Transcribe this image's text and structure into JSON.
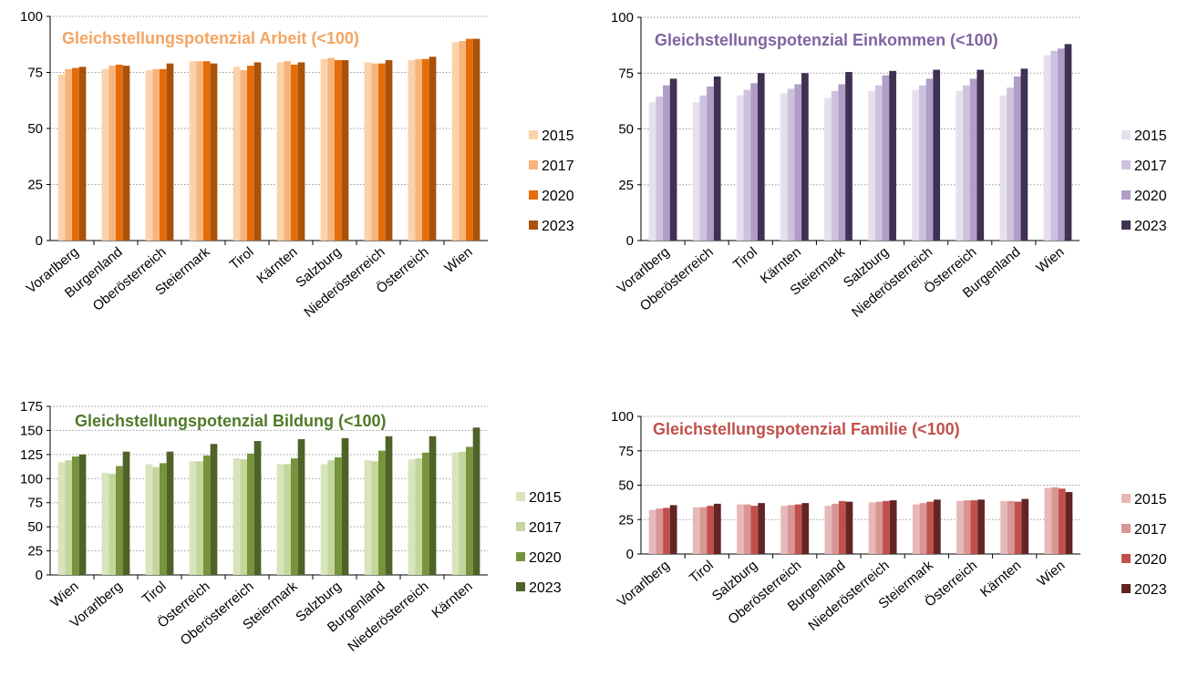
{
  "chart_data": [
    {
      "type": "bar",
      "title": "Gleichstellungspotenzial Arbeit (<100)",
      "title_color": "#f4a460",
      "categories": [
        "Vorarlberg",
        "Burgenland",
        "Oberösterreich",
        "Steiermark",
        "Tirol",
        "Kärnten",
        "Salzburg",
        "Niederösterreich",
        "Österreich",
        "Wien"
      ],
      "ylim": [
        0,
        100
      ],
      "yticks": [
        0,
        25,
        50,
        75,
        100
      ],
      "grid": true,
      "legend_position": "right",
      "series": [
        {
          "name": "2015",
          "color": "#fbd2ab",
          "values": [
            74,
            76.5,
            76,
            80,
            77.5,
            79.5,
            81,
            79.5,
            80.5,
            88.5
          ]
        },
        {
          "name": "2017",
          "color": "#f8b47a",
          "values": [
            76.5,
            78,
            76.5,
            80,
            76,
            80,
            81.5,
            79,
            81,
            89
          ]
        },
        {
          "name": "2020",
          "color": "#e46c0a",
          "values": [
            77,
            78.5,
            76.5,
            80,
            78,
            78.5,
            80.5,
            79,
            81,
            90
          ]
        },
        {
          "name": "2023",
          "color": "#a9520a",
          "values": [
            77.5,
            78,
            79,
            79,
            79.5,
            79.5,
            80.5,
            80.5,
            82,
            90
          ]
        }
      ]
    },
    {
      "type": "bar",
      "title": "Gleichstellungspotenzial Einkommen (<100)",
      "title_color": "#8064a2",
      "categories": [
        "Vorarlberg",
        "Oberösterreich",
        "Tirol",
        "Kärnten",
        "Steiermark",
        "Salzburg",
        "Niederösterreich",
        "Österreich",
        "Burgenland",
        "Wien"
      ],
      "ylim": [
        0,
        100
      ],
      "yticks": [
        0,
        25,
        50,
        75,
        100
      ],
      "grid": true,
      "legend_position": "right",
      "series": [
        {
          "name": "2015",
          "color": "#e6e0ee",
          "values": [
            62,
            62,
            65,
            66,
            64,
            67,
            67.5,
            67,
            65,
            83
          ]
        },
        {
          "name": "2017",
          "color": "#cdc2dd",
          "values": [
            64.5,
            65,
            67.5,
            68,
            67,
            69.5,
            69.5,
            69.5,
            68.5,
            85
          ]
        },
        {
          "name": "2020",
          "color": "#b09dc8",
          "values": [
            69.5,
            69,
            70.5,
            70,
            70,
            74,
            72.5,
            72.5,
            73.5,
            86
          ]
        },
        {
          "name": "2023",
          "color": "#3f3151",
          "values": [
            72.5,
            73.5,
            75,
            75,
            75.5,
            76,
            76.5,
            76.5,
            77,
            88
          ]
        }
      ]
    },
    {
      "type": "bar",
      "title": "Gleichstellungspotenzial Bildung (<100)",
      "title_color": "#4f7a28",
      "categories": [
        "Wien",
        "Vorarlberg",
        "Tirol",
        "Österreich",
        "Oberösterreich",
        "Steiermark",
        "Salzburg",
        "Burgenland",
        "Niederösterreich",
        "Kärnten"
      ],
      "ylim": [
        0,
        175
      ],
      "yticks": [
        0,
        25,
        50,
        75,
        100,
        125,
        150,
        175
      ],
      "grid": true,
      "legend_position": "right",
      "series": [
        {
          "name": "2015",
          "color": "#d8e4bc",
          "values": [
            117,
            106,
            115,
            118,
            121,
            115,
            115,
            119,
            120,
            127
          ]
        },
        {
          "name": "2017",
          "color": "#c3d69b",
          "values": [
            119,
            105,
            112,
            118,
            120,
            115,
            119,
            118,
            121,
            128
          ]
        },
        {
          "name": "2020",
          "color": "#77933c",
          "values": [
            123,
            113,
            116,
            124,
            126,
            121,
            122,
            129,
            127,
            133
          ]
        },
        {
          "name": "2023",
          "color": "#4f6228",
          "values": [
            125,
            128,
            128,
            136,
            139,
            141,
            142,
            144,
            144,
            153
          ]
        }
      ]
    },
    {
      "type": "bar",
      "title": "Gleichstellungspotenzial Familie (<100)",
      "title_color": "#c0504d",
      "categories": [
        "Vorarlberg",
        "Tirol",
        "Salzburg",
        "Oberösterreich",
        "Burgenland",
        "Niederösterreich",
        "Steiermark",
        "Österreich",
        "Kärnten",
        "Wien"
      ],
      "ylim": [
        0,
        100
      ],
      "yticks": [
        0,
        25,
        50,
        75,
        100
      ],
      "grid": true,
      "legend_position": "right",
      "series": [
        {
          "name": "2015",
          "color": "#e6b9b8",
          "values": [
            32,
            34,
            36,
            35,
            35,
            37.5,
            36,
            38.5,
            38.5,
            48
          ]
        },
        {
          "name": "2017",
          "color": "#d99694",
          "values": [
            33,
            34,
            36,
            35.5,
            36.5,
            38,
            37,
            39,
            38.5,
            48.5
          ]
        },
        {
          "name": "2020",
          "color": "#c0504d",
          "values": [
            33.5,
            35,
            35,
            36,
            38.5,
            38.5,
            38,
            39,
            38,
            47.5
          ]
        },
        {
          "name": "2023",
          "color": "#632523",
          "values": [
            35.5,
            36.5,
            37,
            37,
            38,
            39,
            39.5,
            39.5,
            40,
            45
          ]
        }
      ]
    }
  ]
}
